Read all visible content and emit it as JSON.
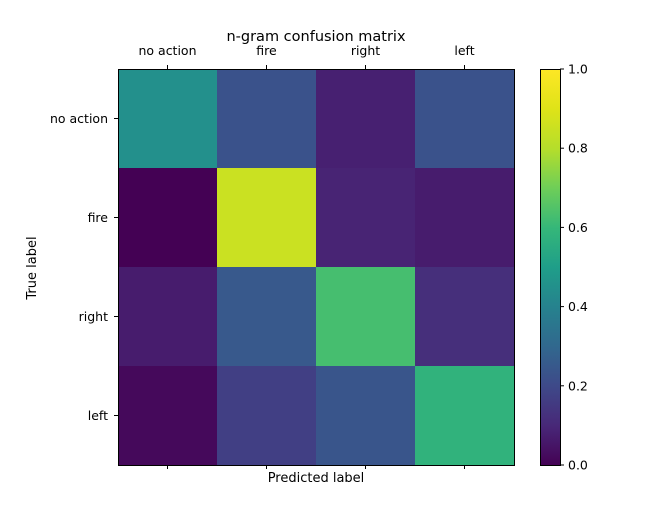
{
  "chart_data": {
    "type": "heatmap",
    "title": "n-gram confusion matrix",
    "xlabel": "Predicted label",
    "ylabel": "True label",
    "x_categories": [
      "no action",
      "fire",
      "right",
      "left"
    ],
    "y_categories": [
      "no action",
      "fire",
      "right",
      "left"
    ],
    "values": [
      [
        0.45,
        0.23,
        0.08,
        0.23
      ],
      [
        0.0,
        0.85,
        0.09,
        0.07
      ],
      [
        0.07,
        0.25,
        0.63,
        0.12
      ],
      [
        0.02,
        0.17,
        0.24,
        0.58
      ]
    ],
    "colorbar": {
      "range": [
        0.0,
        1.0
      ],
      "ticks": [
        0.0,
        0.2,
        0.4,
        0.6,
        0.8,
        1.0
      ],
      "tick_labels": [
        "0.0",
        "0.2",
        "0.4",
        "0.6",
        "0.8",
        "1.0"
      ],
      "colormap": "viridis"
    },
    "x_ticks_position": "top",
    "grid": false
  }
}
